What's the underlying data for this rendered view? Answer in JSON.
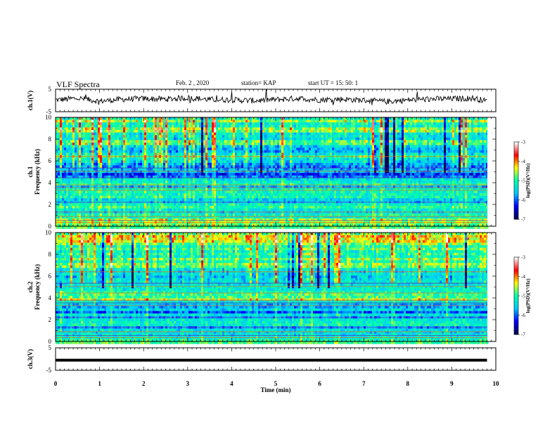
{
  "header": {
    "title": "VLF Spectra",
    "date": "Feb. 2 , 2020",
    "station": "station= KAP",
    "start": "start UT =  15: 50: 1"
  },
  "colors": {
    "waveform": "#000000",
    "colormap": [
      "#000050",
      "#0000ff",
      "#00c8ff",
      "#00ffaa",
      "#ffff00",
      "#ff0000",
      "#ffffff"
    ]
  },
  "chart_data": [
    {
      "type": "line",
      "panel": "ch1-waveform",
      "ylabel": "ch.1(V)",
      "ylim": [
        -5,
        5
      ],
      "yticks": [
        "5",
        "-5"
      ],
      "xlim": [
        0,
        10
      ],
      "series_note": "noisy waveform around 0 V, ~±2 V fluctuations",
      "x": [
        0,
        0.5,
        1,
        1.5,
        2,
        2.5,
        3,
        3.5,
        4,
        4.5,
        5,
        5.5,
        6,
        6.5,
        7,
        7.5,
        8,
        8.5,
        9,
        9.5,
        9.8
      ],
      "y": [
        0.2,
        1.0,
        -0.3,
        0.5,
        0.8,
        0.6,
        1.2,
        0.4,
        0.3,
        -0.1,
        0.4,
        0.9,
        0.3,
        0.6,
        0.1,
        -0.5,
        0.2,
        0.6,
        0.8,
        1.0,
        -0.3
      ]
    },
    {
      "type": "heatmap",
      "panel": "ch1-spectrogram",
      "ylabel": "Frequency (kHz)",
      "channel_label": "ch.1",
      "ylim": [
        0,
        10
      ],
      "yticks": [
        "0",
        "2",
        "4",
        "6",
        "8",
        "10"
      ],
      "colorbar": {
        "label": "log(PSD)(V²/Hz)",
        "range": [
          -7,
          -3
        ],
        "ticks": [
          "-3",
          "-4",
          "-5",
          "-6",
          "-7"
        ]
      },
      "freq_profile_kHz": [
        0,
        1,
        2,
        3,
        4,
        5,
        6,
        7,
        8,
        9,
        10
      ],
      "freq_profile_logpsd": [
        -4.5,
        -5.2,
        -5.1,
        -5.6,
        -5.4,
        -5.9,
        -5.4,
        -5.3,
        -5.0,
        -4.9,
        -4.9
      ]
    },
    {
      "type": "heatmap",
      "panel": "ch2-spectrogram",
      "ylabel": "Frequency (kHz)",
      "channel_label": "ch.2",
      "ylim": [
        0,
        10
      ],
      "yticks": [
        "0",
        "2",
        "4",
        "6",
        "8",
        "10"
      ],
      "colorbar": {
        "label": "log(PSD)(V²/Hz)",
        "range": [
          -7,
          -3
        ],
        "ticks": [
          "-3",
          "-4",
          "-5",
          "-6",
          "-7"
        ]
      },
      "freq_profile_kHz": [
        0,
        1,
        2,
        3,
        4,
        5,
        6,
        7,
        8,
        9,
        10
      ],
      "freq_profile_logpsd": [
        -4.8,
        -5.3,
        -5.6,
        -5.8,
        -4.8,
        -5.2,
        -5.3,
        -5.0,
        -4.8,
        -4.7,
        -4.6
      ]
    },
    {
      "type": "line",
      "panel": "ch3-waveform",
      "ylabel": "ch.3(V)",
      "ylim": [
        -5,
        5
      ],
      "yticks": [
        "5",
        "-5"
      ],
      "xlim": [
        0,
        10
      ],
      "x": [
        0,
        9.8
      ],
      "y": [
        -0.5,
        -0.5
      ]
    }
  ],
  "xaxis": {
    "label": "Time (min)",
    "ticks": [
      "0",
      "1",
      "2",
      "3",
      "4",
      "5",
      "6",
      "7",
      "8",
      "9",
      "10"
    ]
  }
}
